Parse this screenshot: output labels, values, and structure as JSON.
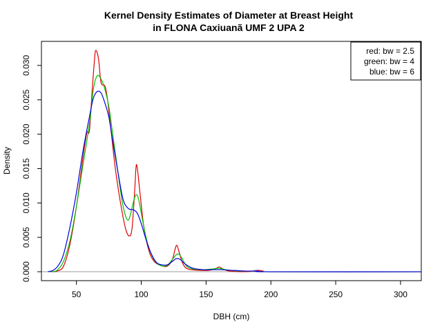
{
  "chart_data": {
    "type": "line",
    "title_line1": "Kernel Density Estimates of Diameter at Breast Height",
    "title_line2": "in FLONA Caxiuanã UMF 2 UPA 2",
    "xlabel": "DBH (cm)",
    "ylabel": "Density",
    "xlim": [
      23,
      316
    ],
    "ylim": [
      -0.0013,
      0.0335
    ],
    "x_ticks": [
      {
        "value": 50,
        "label": "50"
      },
      {
        "value": 100,
        "label": "100"
      },
      {
        "value": 150,
        "label": "150"
      },
      {
        "value": 200,
        "label": "200"
      },
      {
        "value": 250,
        "label": "250"
      },
      {
        "value": 300,
        "label": "300"
      }
    ],
    "y_ticks": [
      {
        "value": 0.0,
        "label": "0.000"
      },
      {
        "value": 0.005,
        "label": "0.005"
      },
      {
        "value": 0.01,
        "label": "0.010"
      },
      {
        "value": 0.015,
        "label": "0.015"
      },
      {
        "value": 0.02,
        "label": "0.020"
      },
      {
        "value": 0.025,
        "label": "0.025"
      },
      {
        "value": 0.03,
        "label": "0.030"
      }
    ],
    "grid": false,
    "legend_position": "top-right",
    "legend": [
      {
        "label": "red: bw = 2.5"
      },
      {
        "label": "green: bw = 4"
      },
      {
        "label": "blue: bw = 6"
      }
    ],
    "series": [
      {
        "color": "#e00000",
        "points": [
          [
            30,
            0
          ],
          [
            35,
            0.0001
          ],
          [
            40,
            0.0008
          ],
          [
            45,
            0.004
          ],
          [
            50,
            0.0095
          ],
          [
            55,
            0.0165
          ],
          [
            58,
            0.0202
          ],
          [
            60,
            0.0205
          ],
          [
            62,
            0.026
          ],
          [
            64,
            0.031
          ],
          [
            65,
            0.0322
          ],
          [
            67,
            0.031
          ],
          [
            69,
            0.0275
          ],
          [
            72,
            0.027
          ],
          [
            74,
            0.025
          ],
          [
            77,
            0.02
          ],
          [
            80,
            0.015
          ],
          [
            84,
            0.01
          ],
          [
            88,
            0.0062
          ],
          [
            91,
            0.0052
          ],
          [
            93,
            0.0065
          ],
          [
            95,
            0.012
          ],
          [
            96,
            0.0153
          ],
          [
            97,
            0.015
          ],
          [
            99,
            0.0115
          ],
          [
            102,
            0.0065
          ],
          [
            106,
            0.003
          ],
          [
            110,
            0.0015
          ],
          [
            115,
            0.0009
          ],
          [
            120,
            0.0008
          ],
          [
            124,
            0.0018
          ],
          [
            127,
            0.0038
          ],
          [
            129,
            0.003
          ],
          [
            132,
            0.0012
          ],
          [
            136,
            0.0004
          ],
          [
            145,
            0.0002
          ],
          [
            152,
            0.0002
          ],
          [
            157,
            0.0004
          ],
          [
            160,
            0.0007
          ],
          [
            163,
            0.0004
          ],
          [
            168,
            0.0001
          ],
          [
            180,
            0
          ],
          [
            186,
            0.0001
          ],
          [
            190,
            0.0002
          ],
          [
            194,
            0.0001
          ],
          [
            200,
            0
          ],
          [
            316,
            0
          ]
        ]
      },
      {
        "color": "#00c000",
        "points": [
          [
            30,
            0
          ],
          [
            35,
            0.0002
          ],
          [
            40,
            0.0015
          ],
          [
            45,
            0.0045
          ],
          [
            50,
            0.0095
          ],
          [
            55,
            0.0155
          ],
          [
            60,
            0.0215
          ],
          [
            63,
            0.0265
          ],
          [
            66,
            0.0285
          ],
          [
            69,
            0.028
          ],
          [
            72,
            0.0265
          ],
          [
            75,
            0.024
          ],
          [
            78,
            0.02
          ],
          [
            82,
            0.0145
          ],
          [
            86,
            0.0095
          ],
          [
            90,
            0.0075
          ],
          [
            94,
            0.0102
          ],
          [
            96,
            0.0112
          ],
          [
            98,
            0.0105
          ],
          [
            101,
            0.0075
          ],
          [
            105,
            0.004
          ],
          [
            110,
            0.0017
          ],
          [
            115,
            0.0009
          ],
          [
            120,
            0.0009
          ],
          [
            124,
            0.0018
          ],
          [
            128,
            0.0026
          ],
          [
            131,
            0.0021
          ],
          [
            135,
            0.0008
          ],
          [
            140,
            0.0004
          ],
          [
            148,
            0.0003
          ],
          [
            155,
            0.0004
          ],
          [
            160,
            0.0005
          ],
          [
            165,
            0.0003
          ],
          [
            175,
            0.0001
          ],
          [
            190,
            0.0001
          ],
          [
            200,
            0
          ],
          [
            316,
            0
          ]
        ]
      },
      {
        "color": "#0000e0",
        "points": [
          [
            28,
            0
          ],
          [
            32,
            0.0002
          ],
          [
            36,
            0.0009
          ],
          [
            40,
            0.0025
          ],
          [
            45,
            0.0065
          ],
          [
            50,
            0.0115
          ],
          [
            55,
            0.0175
          ],
          [
            60,
            0.0225
          ],
          [
            63,
            0.0252
          ],
          [
            66,
            0.0262
          ],
          [
            69,
            0.026
          ],
          [
            72,
            0.0245
          ],
          [
            75,
            0.0225
          ],
          [
            78,
            0.019
          ],
          [
            82,
            0.0145
          ],
          [
            86,
            0.0105
          ],
          [
            90,
            0.0092
          ],
          [
            94,
            0.009
          ],
          [
            97,
            0.0085
          ],
          [
            100,
            0.007
          ],
          [
            104,
            0.0045
          ],
          [
            108,
            0.0025
          ],
          [
            112,
            0.0013
          ],
          [
            116,
            0.001
          ],
          [
            120,
            0.001
          ],
          [
            124,
            0.0015
          ],
          [
            127,
            0.0019
          ],
          [
            130,
            0.0018
          ],
          [
            134,
            0.0011
          ],
          [
            140,
            0.0005
          ],
          [
            148,
            0.0003
          ],
          [
            155,
            0.0003
          ],
          [
            162,
            0.0003
          ],
          [
            170,
            0.0002
          ],
          [
            180,
            0.0001
          ],
          [
            190,
            0.0001
          ],
          [
            200,
            0
          ],
          [
            316,
            0
          ]
        ]
      }
    ]
  }
}
